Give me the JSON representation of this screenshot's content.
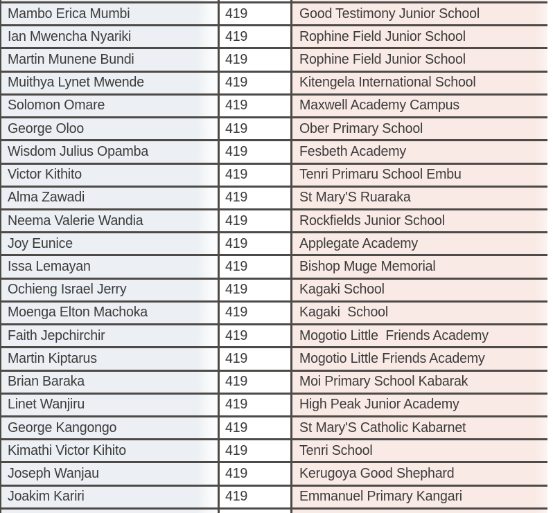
{
  "table": {
    "description": "Exam results list: candidate name, marks, school",
    "marks_repeated_value": "419",
    "rows": [
      {
        "name": "Mambo Erica Mumbi",
        "marks": "419",
        "school": "Good Testimony Junior School"
      },
      {
        "name": "Ian Mwencha Nyariki",
        "marks": "419",
        "school": "Rophine Field Junior School"
      },
      {
        "name": "Martin Munene Bundi",
        "marks": "419",
        "school": "Rophine Field Junior School"
      },
      {
        "name": "Muithya Lynet Mwende",
        "marks": "419",
        "school": "Kitengela International School"
      },
      {
        "name": "Solomon Omare",
        "marks": "419",
        "school": "Maxwell Academy Campus"
      },
      {
        "name": "George Oloo",
        "marks": "419",
        "school": "Ober Primary School"
      },
      {
        "name": "Wisdom Julius Opamba",
        "marks": "419",
        "school": "Fesbeth Academy"
      },
      {
        "name": "Victor Kithito",
        "marks": "419",
        "school": "Tenri Primaru School Embu"
      },
      {
        "name": "Alma Zawadi",
        "marks": "419",
        "school": "St Mary'S Ruaraka"
      },
      {
        "name": "Neema Valerie Wandia",
        "marks": "419",
        "school": "Rockfields Junior School"
      },
      {
        "name": "Joy Eunice",
        "marks": "419",
        "school": "Applegate Academy"
      },
      {
        "name": "Issa Lemayan",
        "marks": "419",
        "school": "Bishop Muge Memorial"
      },
      {
        "name": "Ochieng Israel Jerry",
        "marks": "419",
        "school": "Kagaki School"
      },
      {
        "name": "Moenga Elton Machoka",
        "marks": "419",
        "school": "Kagaki  School"
      },
      {
        "name": "Faith Jepchirchir",
        "marks": "419",
        "school": "Mogotio Little  Friends Academy"
      },
      {
        "name": "Martin Kiptarus",
        "marks": "419",
        "school": "Mogotio Little Friends Academy"
      },
      {
        "name": "Brian Baraka",
        "marks": "419",
        "school": "Moi Primary School Kabarak"
      },
      {
        "name": "Linet Wanjiru",
        "marks": "419",
        "school": "High Peak Junior Academy"
      },
      {
        "name": "George Kangongo",
        "marks": "419",
        "school": "St Mary'S Catholic Kabarnet"
      },
      {
        "name": "Kimathi Victor Kihito",
        "marks": "419",
        "school": "Tenri School"
      },
      {
        "name": "Joseph Wanjau",
        "marks": "419",
        "school": "Kerugoya Good Shephard"
      },
      {
        "name": "Joakim Kariri",
        "marks": "419",
        "school": "Emmanuel Primary Kangari"
      }
    ]
  },
  "colors": {
    "name_col_bg": "#eceff3",
    "marks_col_bg": "#ffffff",
    "school_col_bg": "#f9eae5",
    "grid_line": "#4d4a47",
    "text_color": "#3b3b3b"
  }
}
